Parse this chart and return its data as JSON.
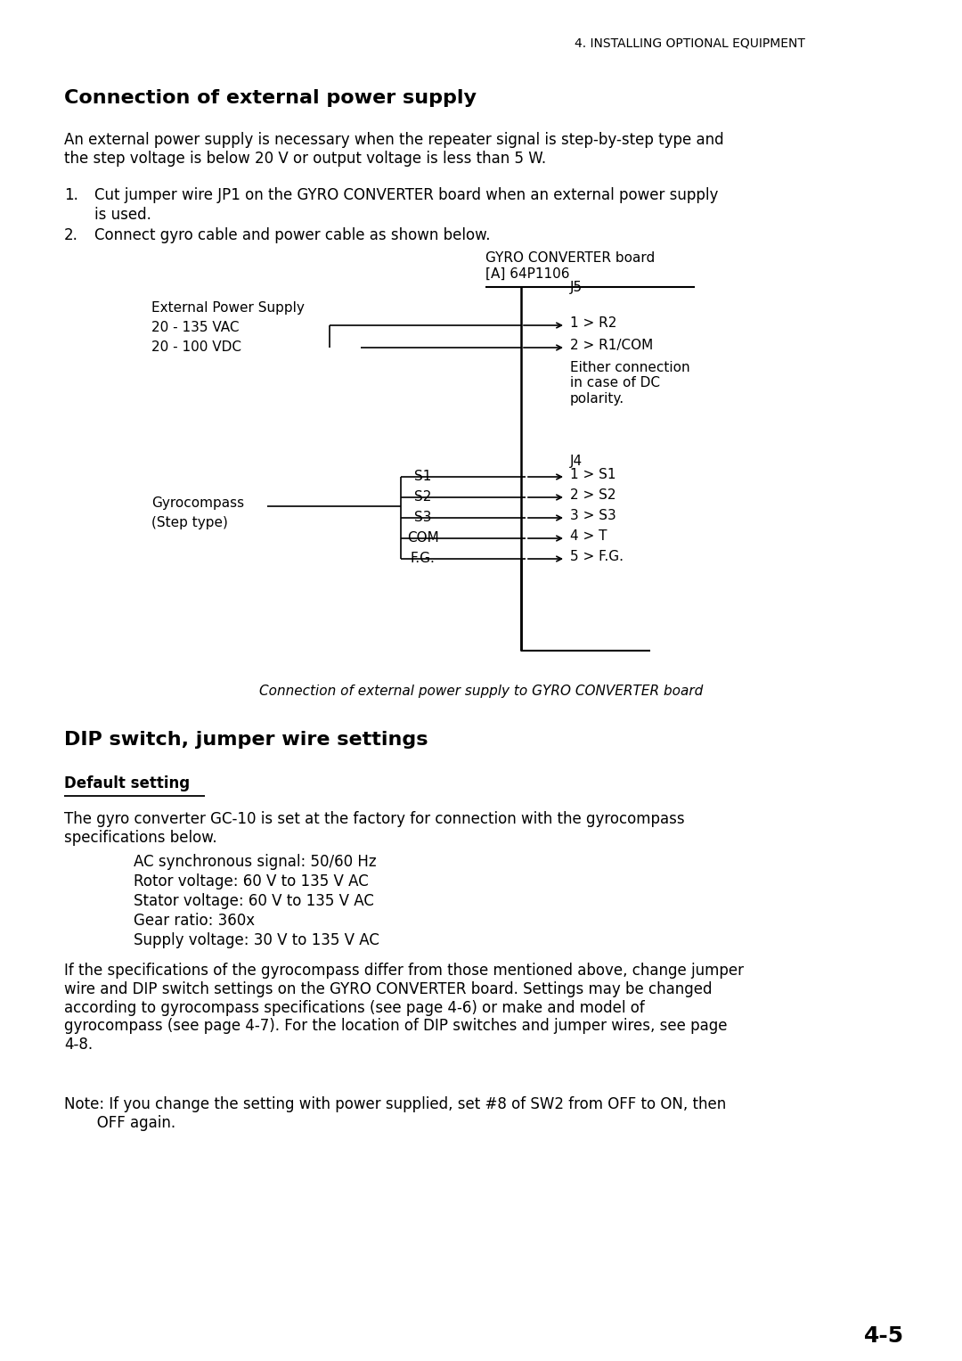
{
  "header": "4. INSTALLING OPTIONAL EQUIPMENT",
  "section1_title": "Connection of external power supply",
  "section1_para1": "An external power supply is necessary when the repeater signal is step-by-step type and\nthe step voltage is below 20 V or output voltage is less than 5 W.",
  "diagram_board_label1": "GYRO CONVERTER board",
  "diagram_board_label2": "[A] 64P1106",
  "diagram_ext_label1": "External Power Supply",
  "diagram_ext_label2": "20 - 135 VAC",
  "diagram_ext_label3": "20 - 100 VDC",
  "diagram_j5_label": "J5",
  "diagram_j5_1": "1 > R2",
  "diagram_j5_2": "2 > R1/COM",
  "diagram_either": "Either connection\nin case of DC\npolarity.",
  "diagram_gyro_label1": "Gyrocompass",
  "diagram_gyro_label2": "(Step type)",
  "diagram_j4_label": "J4",
  "diagram_s1": "S1",
  "diagram_s2": "S2",
  "diagram_s3": "S3",
  "diagram_com": "COM",
  "diagram_fg": "F.G.",
  "diagram_j4_1": "1 > S1",
  "diagram_j4_2": "2 > S2",
  "diagram_j4_3": "3 > S3",
  "diagram_j4_4": "4 > T",
  "diagram_j4_5": "5 > F.G.",
  "diagram_caption": "Connection of external power supply to GYRO CONVERTER board",
  "section2_title": "DIP switch, jumper wire settings",
  "section2_sub": "Default setting",
  "section2_para1": "The gyro converter GC-10 is set at the factory for connection with the gyrocompass\nspecifications below.",
  "section2_specs": [
    "AC synchronous signal: 50/60 Hz",
    "Rotor voltage: 60 V to 135 V AC",
    "Stator voltage: 60 V to 135 V AC",
    "Gear ratio: 360x",
    "Supply voltage: 30 V to 135 V AC"
  ],
  "section2_para2": "If the specifications of the gyrocompass differ from those mentioned above, change jumper\nwire and DIP switch settings on the GYRO CONVERTER board. Settings may be changed\naccording to gyrocompass specifications (see page 4-6) or make and model of\ngyrocompass (see page 4-7). For the location of DIP switches and jumper wires, see page\n4-8.",
  "section2_note": "Note: If you change the setting with power supplied, set #8 of SW2 from OFF to ON, then\n       OFF again.",
  "page_number": "4-5",
  "bg_color": "#ffffff",
  "text_color": "#000000"
}
